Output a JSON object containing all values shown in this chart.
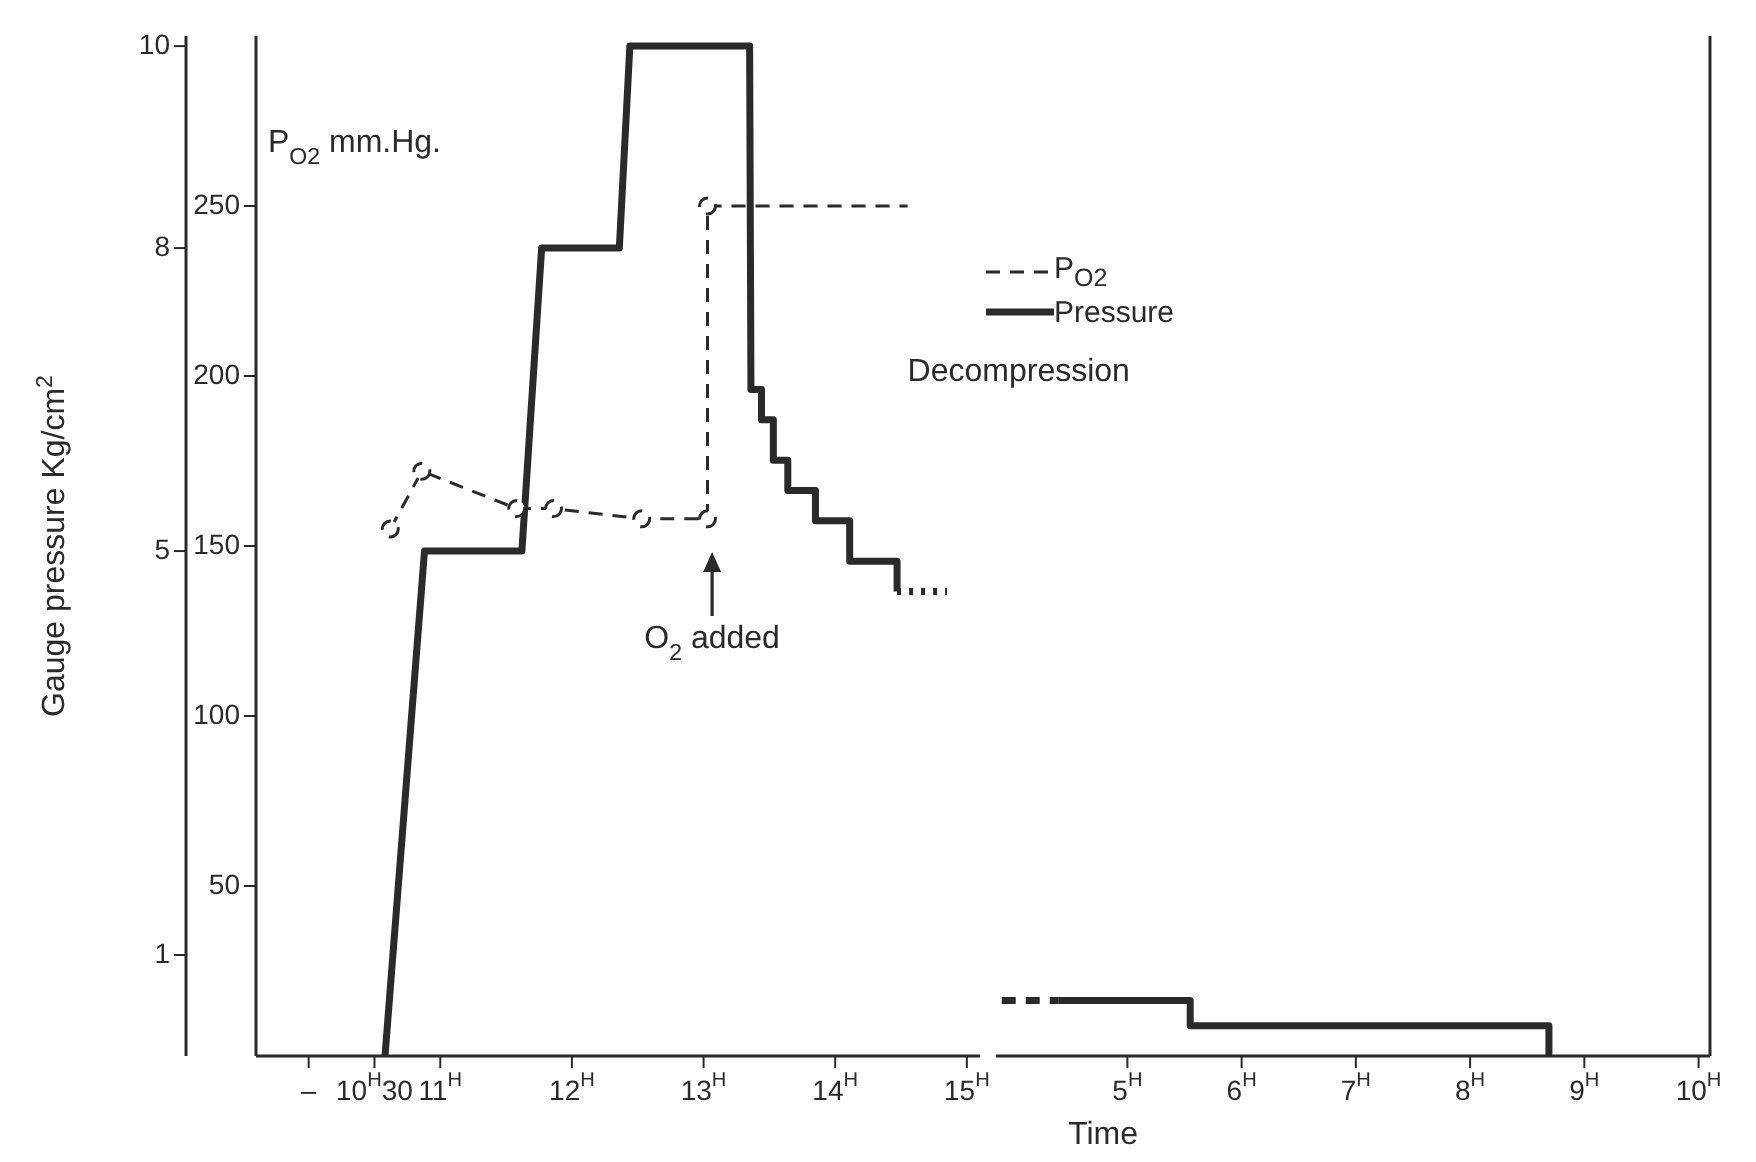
{
  "chart_data": [
    {
      "type": "line",
      "ylabel": "Gauge pressure Kg/cm$^{2}$",
      "y2label": "P$_{O2}$ mm.Hg.",
      "xlim": [
        9.6,
        15.1
      ],
      "xticks": [
        {
          "value": 10,
          "label": "–"
        },
        {
          "value": 10.5,
          "label": "10$^{H}$30"
        },
        {
          "value": 11,
          "label": "11$^{H}$"
        },
        {
          "value": 12,
          "label": "12$^{H}$"
        },
        {
          "value": 13,
          "label": "13$^{H}$"
        },
        {
          "value": 14,
          "label": "14$^{H}$"
        },
        {
          "value": 15,
          "label": "15$^{H}$"
        }
      ],
      "ylim": [
        0,
        10.1
      ],
      "yticks": [
        1,
        5,
        8,
        10
      ],
      "y2lim": [
        0,
        300
      ],
      "y2ticks": [
        50,
        100,
        150,
        200,
        250
      ],
      "legend": "top right",
      "annotations": [
        "Decompression",
        "O$_{2}$ added"
      ],
      "series": [
        {
          "name": "P$_{O2}$",
          "axis": "y2",
          "color": "#2a2a2a",
          "line_style": "dashed",
          "marker": "circle",
          "x": [
            10.62,
            10.86,
            11.58,
            11.86,
            12.53,
            13.03,
            13.03
          ],
          "values": [
            155,
            172,
            161,
            161,
            158,
            158,
            250
          ]
        },
        {
          "axis": "y2",
          "color": "#2a2a2a",
          "line_style": "dashed",
          "marker": "none",
          "x": [
            13.03,
            14.55
          ],
          "values": [
            250,
            250
          ]
        },
        {
          "name": "Pressure",
          "axis": "y",
          "color": "#2a2a2a",
          "line_style": "solid",
          "marker": "none",
          "x": [
            10.58,
            10.88,
            11.62,
            11.77,
            12.36,
            12.44,
            13.35,
            13.36,
            13.44,
            13.44,
            13.53,
            13.53,
            13.64,
            13.64,
            13.85,
            13.85,
            14.11,
            14.11,
            14.47,
            14.47
          ],
          "values": [
            0,
            5,
            5,
            8,
            8,
            10,
            10,
            6.6,
            6.6,
            6.3,
            6.3,
            5.9,
            5.9,
            5.6,
            5.6,
            5.3,
            5.3,
            4.9,
            4.9,
            4.6
          ]
        },
        {
          "axis": "y",
          "color": "#2a2a2a",
          "line_style": "dotted",
          "marker": "none",
          "x": [
            14.47,
            14.85
          ],
          "values": [
            4.6,
            4.6
          ]
        }
      ]
    },
    {
      "type": "line",
      "xlabel": "Time",
      "xlim": [
        3.85,
        10.1
      ],
      "xticks": [
        {
          "value": 5,
          "label": "5$^{H}$"
        },
        {
          "value": 6,
          "label": "6$^{H}$"
        },
        {
          "value": 7,
          "label": "7$^{H}$"
        },
        {
          "value": 8,
          "label": "8$^{H}$"
        },
        {
          "value": 9,
          "label": "9$^{H}$"
        },
        {
          "value": 10,
          "label": "10$^{H}$"
        }
      ],
      "ylim": [
        0,
        10.1
      ],
      "yticks": [
        1,
        5,
        8,
        10
      ],
      "tick_labels": "x",
      "series": [
        {
          "axis": "y",
          "color": "#2a2a2a",
          "line_style": "dashed",
          "marker": "none",
          "x": [
            3.9,
            4.4
          ],
          "values": [
            0.55,
            0.55
          ]
        },
        {
          "axis": "y",
          "color": "#2a2a2a",
          "line_style": "solid",
          "marker": "none",
          "x": [
            4.4,
            5.55,
            5.55,
            8.69,
            8.69
          ],
          "values": [
            0.55,
            0.55,
            0.3,
            0.3,
            0
          ]
        }
      ]
    }
  ]
}
